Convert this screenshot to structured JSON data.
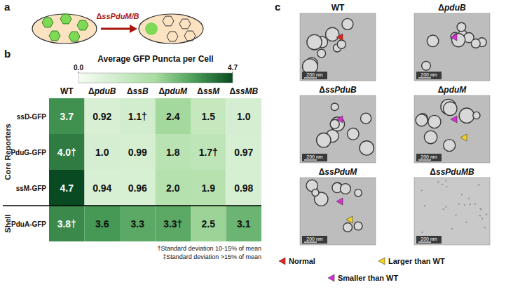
{
  "panel_letters": [
    "a",
    "b",
    "c"
  ],
  "panel_a": {
    "arrow_label": "ΔssPduM/B"
  },
  "chart_data": {
    "type": "heatmap",
    "title": "Average GFP Puncta per Cell",
    "columns": [
      "WT",
      "ΔpduB",
      "ΔssB",
      "ΔpduM",
      "ΔssM",
      "ΔssMB"
    ],
    "rows": [
      "ssD-GFP",
      "PduG-GFP",
      "ssM-GFP",
      "PduA-GFP"
    ],
    "row_groups": [
      {
        "label": "Core Reporters",
        "rows": [
          0,
          1,
          2
        ]
      },
      {
        "label": "Shell",
        "rows": [
          3
        ]
      }
    ],
    "values": [
      [
        3.7,
        0.92,
        1.1,
        2.4,
        1.5,
        1.0
      ],
      [
        4.0,
        1.0,
        0.99,
        1.8,
        1.7,
        0.97
      ],
      [
        4.7,
        0.94,
        0.96,
        2.0,
        1.9,
        0.98
      ],
      [
        3.8,
        3.6,
        3.3,
        3.3,
        2.5,
        3.1
      ]
    ],
    "value_labels": [
      [
        "3.7",
        "0.92",
        "1.1†",
        "2.4",
        "1.5",
        "1.0"
      ],
      [
        "4.0†",
        "1.0",
        "0.99",
        "1.8",
        "1.7†",
        "0.97"
      ],
      [
        "4.7",
        "0.94",
        "0.96",
        "2.0",
        "1.9",
        "0.98"
      ],
      [
        "3.8†",
        "3.6",
        "3.3",
        "3.3†",
        "2.5",
        "3.1"
      ]
    ],
    "colorbar": {
      "range": [
        0,
        4.7
      ],
      "ticks": [
        {
          "value": 0,
          "label": "0.0"
        },
        4.7
      ]
    },
    "footnotes": [
      "†Standard deviation 10-15% of mean",
      "‡Standard deviation >15% of mean"
    ]
  },
  "panel_c": {
    "images": [
      {
        "label": "WT",
        "scale_bar": "200 nm",
        "arrows": [
          0
        ]
      },
      {
        "label": "ΔpduB",
        "scale_bar": "200 nm",
        "arrows": [
          2
        ]
      },
      {
        "label": "ΔssPduB",
        "scale_bar": "200 nm",
        "arrows": [
          2
        ]
      },
      {
        "label": "ΔpduM",
        "scale_bar": "200 nm",
        "arrows": [
          2,
          1
        ]
      },
      {
        "label": "ΔssPduM",
        "scale_bar": "200 nm",
        "arrows": [
          2,
          1
        ]
      },
      {
        "label": "ΔssPduMB",
        "scale_bar": "200 nm",
        "arrows": []
      }
    ],
    "legend": [
      {
        "label": "Normal",
        "color": "#e2261c"
      },
      {
        "label": "Larger than WT",
        "color": "#f2d21e"
      },
      {
        "label": "Smaller than WT",
        "color": "#d92ed0"
      }
    ]
  }
}
